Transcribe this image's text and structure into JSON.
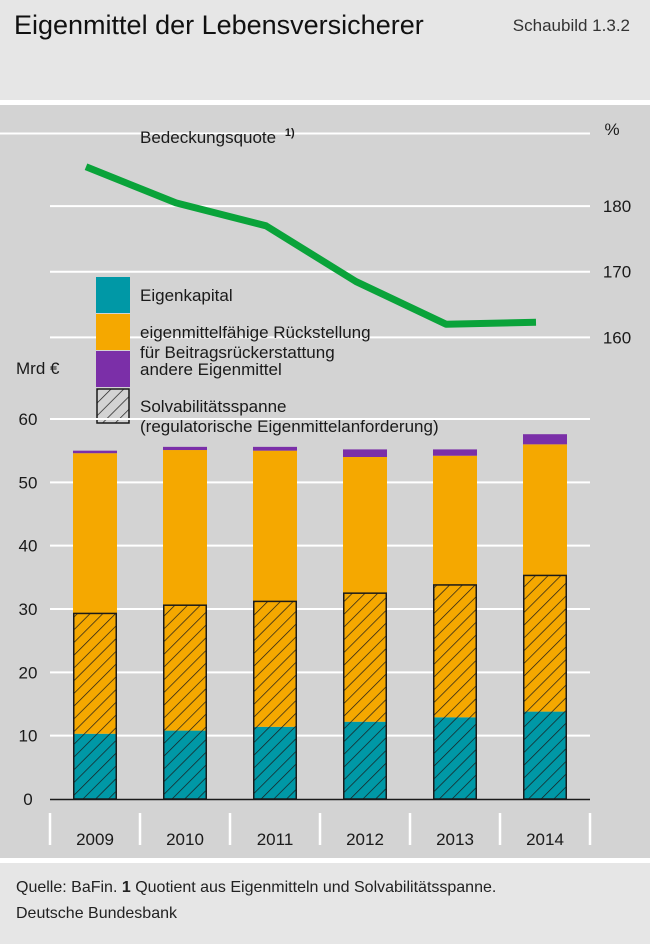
{
  "header": {
    "title": "Eigenmittel der Lebensversicherer",
    "figure_number": "Schaubild 1.3.2"
  },
  "footer": {
    "source_label": "Quelle: BaFin.",
    "note_number": "1",
    "note_text": "Quotient aus Eigenmitteln und Solvabilitätsspanne.",
    "publisher": "Deutsche Bundesbank"
  },
  "colors": {
    "eigenkapital": "#0098a6",
    "rueckstellung": "#f5a800",
    "andere": "#7b2fa8",
    "line": "#0aa33a",
    "panel": "#d3d3d3"
  },
  "chart_data": [
    {
      "type": "line",
      "title": "Bedeckungsquote",
      "title_footnote": "1)",
      "unit": "%",
      "x": [
        "2009",
        "2010",
        "2011",
        "2012",
        "2013",
        "2014"
      ],
      "series": [
        {
          "values": [
            186,
            180.5,
            177,
            168.5,
            162,
            162.3
          ]
        }
      ],
      "yticks": [
        160,
        170,
        180
      ],
      "ylim": [
        157,
        191
      ],
      "grid": true
    },
    {
      "type": "bar",
      "stacked": true,
      "ylabel": "Mrd €",
      "categories": [
        "2009",
        "2010",
        "2011",
        "2012",
        "2013",
        "2014"
      ],
      "series": [
        {
          "name": "Eigenkapital",
          "key": "eigenkapital",
          "values": [
            10.3,
            10.8,
            11.4,
            12.2,
            12.9,
            13.8
          ]
        },
        {
          "name": "eigenmittelfähige Rückstellung für Beitragsrückerstattung",
          "name_lines": [
            "eigenmittelfähige Rückstellung",
            "für Beitragsrückerstattung"
          ],
          "key": "rueckstellung",
          "values": [
            44.3,
            44.3,
            43.6,
            41.8,
            41.3,
            42.2
          ]
        },
        {
          "name": "andere Eigenmittel",
          "key": "andere",
          "values": [
            0.4,
            0.5,
            0.6,
            1.2,
            1.0,
            1.6
          ]
        }
      ],
      "overlay": {
        "name": "Solvabilitätsspanne (regulatorische Eigenmittelanforderung)",
        "name_lines": [
          "Solvabilitätsspanne",
          "(regulatorische Eigenmittelanforderung)"
        ],
        "pattern": "hatched",
        "values": [
          29.3,
          30.6,
          31.2,
          32.5,
          33.8,
          35.3
        ]
      },
      "yticks": [
        0,
        10,
        20,
        30,
        40,
        50,
        60
      ],
      "ylim": [
        0,
        60
      ],
      "grid": true,
      "legend": "top-left"
    }
  ]
}
